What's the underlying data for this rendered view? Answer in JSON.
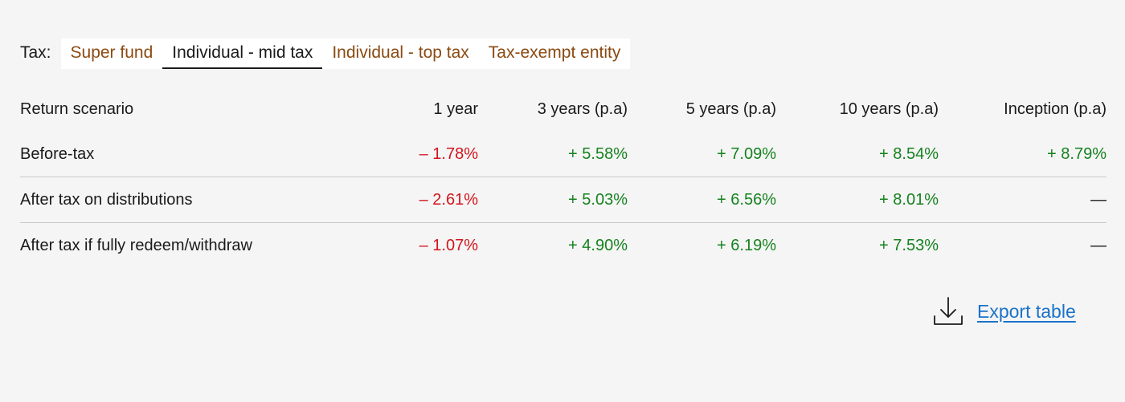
{
  "tax": {
    "label": "Tax:",
    "tabs": [
      {
        "label": "Super fund",
        "active": false
      },
      {
        "label": "Individual - mid tax",
        "active": true
      },
      {
        "label": "Individual - top tax",
        "active": false
      },
      {
        "label": "Tax-exempt entity",
        "active": false
      }
    ]
  },
  "table": {
    "headers": [
      "Return scenario",
      "1 year",
      "3 years (p.a)",
      "5 years (p.a)",
      "10 years (p.a)",
      "Inception (p.a)"
    ],
    "rows": [
      {
        "scenario": "Before-tax",
        "values": [
          "– 1.78%",
          "+ 5.58%",
          "+ 7.09%",
          "+ 8.54%",
          "+ 8.79%"
        ]
      },
      {
        "scenario": "After tax on distributions",
        "values": [
          "– 2.61%",
          "+ 5.03%",
          "+ 6.56%",
          "+ 8.01%",
          "—"
        ]
      },
      {
        "scenario": "After tax if fully redeem/withdraw",
        "values": [
          "– 1.07%",
          "+ 4.90%",
          "+ 6.19%",
          "+ 7.53%",
          "—"
        ]
      }
    ]
  },
  "export": {
    "label": "Export table",
    "icon": "download-icon"
  },
  "colors": {
    "negative": "#d0161e",
    "positive": "#16821f",
    "tab_inactive": "#8b4a12",
    "link": "#1a73c9"
  }
}
